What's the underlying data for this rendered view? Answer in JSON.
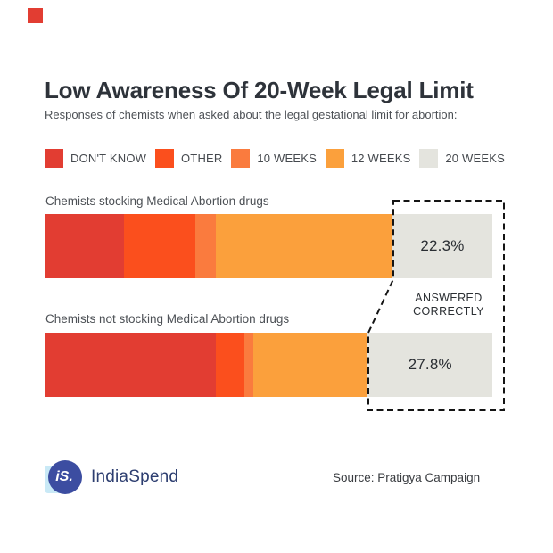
{
  "header": {
    "title": "Low Awareness Of 20-Week Legal Limit",
    "subtitle": "Responses of chemists when asked about the legal gestational limit for abortion:"
  },
  "colors": {
    "dont_know": "#e23d32",
    "other": "#fb4f1d",
    "ten_weeks": "#fa7b3e",
    "twelve_weeks": "#fba03c",
    "twenty_weeks": "#e4e4de",
    "title_text": "#2e333a",
    "dashed_outline": "#141414",
    "brand_navy": "#2d3e70",
    "brand_circle_blue": "#3c4da1",
    "brand_light_blue": "#c9e9f6"
  },
  "chart_data": {
    "type": "bar",
    "variant": "horizontal-stacked-100pct",
    "title": "Low Awareness Of 20-Week Legal Limit",
    "subtitle": "Responses of chemists when asked about the legal gestational limit for abortion:",
    "categories": [
      "Chemists stocking Medical Abortion drugs",
      "Chemists not stocking Medical Abortion drugs"
    ],
    "series": [
      {
        "name": "DON'T KNOW",
        "color": "#e23d32",
        "values": [
          17.8,
          38.3
        ]
      },
      {
        "name": "OTHER",
        "color": "#fb4f1d",
        "values": [
          15.9,
          6.4
        ]
      },
      {
        "name": "10 WEEKS",
        "color": "#fa7b3e",
        "values": [
          4.6,
          2.0
        ]
      },
      {
        "name": "12 WEEKS",
        "color": "#fba03c",
        "values": [
          39.4,
          25.5
        ]
      },
      {
        "name": "20 WEEKS",
        "color": "#e4e4de",
        "values": [
          22.3,
          27.8
        ]
      }
    ],
    "data_labels": [
      "22.3%",
      "27.8%"
    ],
    "labeled_series": "20 WEEKS",
    "annotation": "ANSWERED\nCORRECTLY",
    "xlim": [
      0,
      100
    ],
    "legend_position": "top",
    "grid": false
  },
  "footer": {
    "logo_monogram": "iS.",
    "logo_name": "IndiaSpend",
    "source": "Source: Pratigya Campaign"
  }
}
